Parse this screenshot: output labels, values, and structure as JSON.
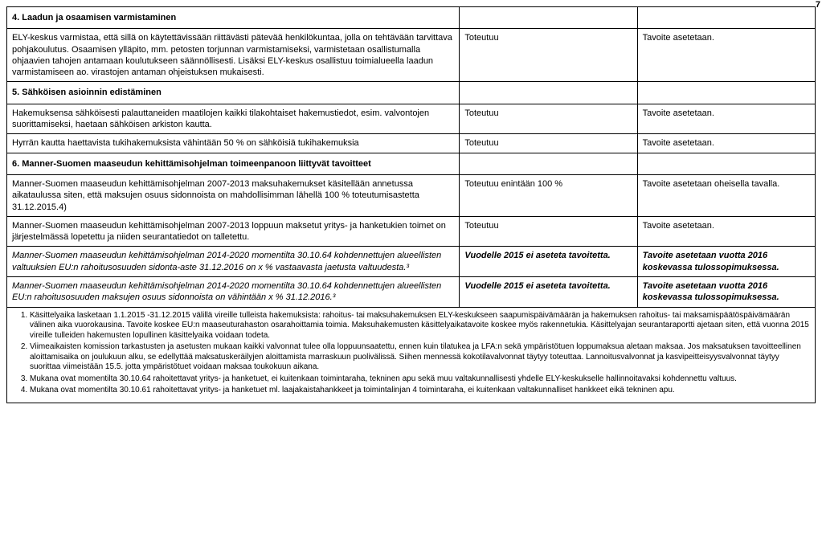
{
  "page_number_hint": "7",
  "colors": {
    "text": "#000000",
    "border": "#000000",
    "background": "#ffffff"
  },
  "fonts": {
    "body_pt": 11,
    "footnote_pt": 10,
    "family": "Arial"
  },
  "table": {
    "column_widths_pct": [
      56,
      22,
      22
    ]
  },
  "rows": [
    {
      "type": "header",
      "c1": "4. Laadun ja osaamisen varmistaminen",
      "c2": "",
      "c3": ""
    },
    {
      "type": "body",
      "c1": "ELY-keskus varmistaa, että sillä on käytettävissään riittävästi pätevää henkilökuntaa, jolla on tehtävään tarvittava pohjakoulutus. Osaamisen ylläpito, mm. petosten torjunnan varmistamiseksi, varmistetaan osallistumalla ohjaavien tahojen antamaan koulutukseen säännöllisesti. Lisäksi ELY-keskus osallistuu toimialueella laadun varmistamiseen ao. virastojen antaman ohjeistuksen mukaisesti.",
      "c2": "Toteutuu",
      "c3": "Tavoite asetetaan."
    },
    {
      "type": "header",
      "c1": "5. Sähköisen asioinnin edistäminen",
      "c2": "",
      "c3": ""
    },
    {
      "type": "body",
      "c1": "Hakemuksensa sähköisesti palauttaneiden maatilojen kaikki tilakohtaiset hakemustiedot, esim. valvontojen suorittamiseksi, haetaan sähköisen arkiston kautta.",
      "c2": "Toteutuu",
      "c3": "Tavoite asetetaan."
    },
    {
      "type": "body",
      "c1": "Hyrrän kautta haettavista tukihakemuksista vähintään 50 % on sähköisiä tukihakemuksia",
      "c2": "Toteutuu",
      "c3": "Tavoite asetetaan."
    },
    {
      "type": "header",
      "c1": "6. Manner-Suomen maaseudun kehittämisohjelman toimeenpanoon liittyvät tavoitteet",
      "c2": "",
      "c3": ""
    },
    {
      "type": "body",
      "c1": "Manner-Suomen maaseudun kehittämisohjelman 2007-2013 maksuhakemukset käsitellään annetussa aikataulussa siten, että maksujen osuus sidonnoista on mahdollisimman lähellä 100 % toteutumisastetta 31.12.2015.4)",
      "c2": "Toteutuu enintään 100 %",
      "c3": "Tavoite asetetaan oheisella tavalla."
    },
    {
      "type": "body",
      "c1": "Manner-Suomen maaseudun kehittämisohjelman 2007-2013 loppuun maksetut yritys- ja hanketukien toimet on järjestelmässä lopetettu ja niiden seurantatiedot on talletettu.",
      "c2": "Toteutuu",
      "c3": "Tavoite asetetaan."
    },
    {
      "type": "body-italic",
      "c1": "Manner-Suomen maaseudun kehittämisohjelman 2014-2020 momentilta 30.10.64 kohdennettujen alueellisten valtuuksien EU:n rahoitusosuuden sidonta-aste 31.12.2016 on x % vastaavasta jaetusta valtuudesta.³",
      "c2": "Vuodelle 2015 ei aseteta tavoitetta.",
      "c3": "Tavoite asetetaan vuotta 2016 koskevassa tulossopimuksessa."
    },
    {
      "type": "body-italic",
      "c1": "Manner-Suomen maaseudun kehittämisohjelman 2014-2020 momentilta 30.10.64 kohdennettujen alueellisten EU:n rahoitusosuuden maksujen osuus sidonnoista on vähintään x % 31.12.2016.³",
      "c2": "Vuodelle 2015 ei aseteta tavoitetta.",
      "c3": "Tavoite asetetaan vuotta 2016 koskevassa tulossopimuksessa."
    }
  ],
  "footnotes": [
    "Käsittelyaika lasketaan 1.1.2015 -31.12.2015 välillä vireille tulleista hakemuksista: rahoitus- tai maksuhakemuksen ELY-keskukseen saapumispäivämäärän ja hakemuksen rahoitus- tai maksamispäätöspäivämäärän välinen aika vuorokausina. Tavoite koskee EU:n maaseuturahaston osarahoittamia toimia. Maksuhakemusten käsittelyaikatavoite koskee myös rakennetukia. Käsittelyajan seurantaraportti ajetaan siten, että vuonna 2015 vireille tulleiden hakemusten lopullinen käsittelyaika voidaan todeta.",
    "Viimeaikaisten komission tarkastusten ja asetusten mukaan kaikki valvonnat tulee olla loppuunsaatettu, ennen kuin tilatukea ja LFA:n sekä ympäristötuen loppumaksua aletaan maksaa. Jos maksatuksen tavoitteellinen aloittamisaika on joulukuun alku, se edellyttää maksatuskeräilyjen aloittamista marraskuun puolivälissä. Siihen mennessä kokotilavalvonnat täytyy toteuttaa. Lannoitusvalvonnat ja kasvipeitteisyysvalvonnat täytyy suorittaa viimeistään 15.5. jotta ympäristötuet voidaan maksaa toukokuun aikana.",
    "Mukana ovat momentilta 30.10.64 rahoitettavat yritys- ja hanketuet, ei kuitenkaan toimintaraha, tekninen apu sekä muu valtakunnallisesti yhdelle ELY-keskukselle hallinnoitavaksi kohdennettu valtuus.",
    "Mukana ovat momentilta 30.10.61 rahoitettavat yritys- ja hanketuet ml. laajakaistahankkeet ja toimintalinjan 4 toimintaraha, ei kuitenkaan valtakunnalliset hankkeet eikä tekninen apu."
  ]
}
